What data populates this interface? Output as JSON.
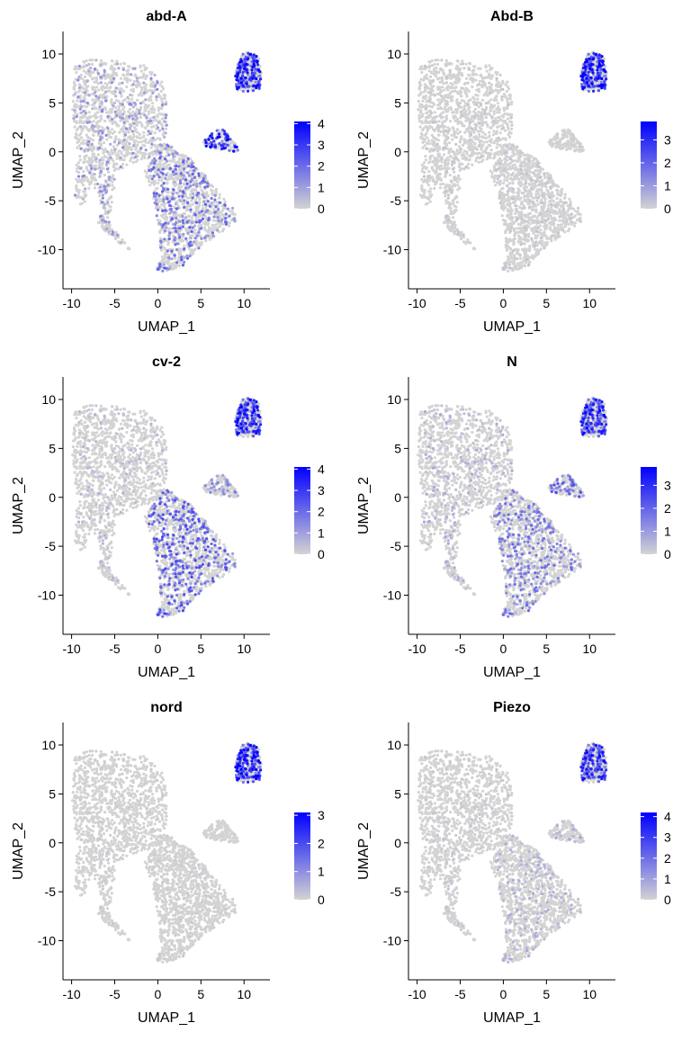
{
  "figure": {
    "colors": {
      "low": "#d3d3d3",
      "high": "#0000ff",
      "axis": "#000000"
    }
  },
  "chart_data": [
    {
      "type": "scatter",
      "title": "abd-A",
      "xlabel": "UMAP_1",
      "ylabel": "UMAP_2",
      "xlim": [
        -11,
        13
      ],
      "ylim": [
        -14,
        12.3
      ],
      "xticks": [
        -10,
        -5,
        0,
        5,
        10
      ],
      "yticks": [
        -10,
        -5,
        0,
        5,
        10
      ],
      "grid": false,
      "legend": {
        "placement": "right",
        "min": 0,
        "max": 4.1,
        "ticks": [
          0,
          1,
          2,
          3,
          4
        ]
      },
      "expression": {
        "top_right_cluster": 2.7,
        "mid_cluster": 2.6,
        "bottom_region": 1.4,
        "upper_region": 0.9
      }
    },
    {
      "type": "scatter",
      "title": "Abd-B",
      "xlabel": "UMAP_1",
      "ylabel": "UMAP_2",
      "xlim": [
        -11,
        13
      ],
      "ylim": [
        -14,
        12.3
      ],
      "xticks": [
        -10,
        -5,
        0,
        5,
        10
      ],
      "yticks": [
        -10,
        -5,
        0,
        5,
        10
      ],
      "grid": false,
      "legend": {
        "placement": "right",
        "min": 0,
        "max": 3.8,
        "ticks": [
          0,
          1,
          2,
          3
        ]
      },
      "expression": {
        "top_right_cluster": 2.6,
        "mid_cluster": 0.1,
        "bottom_region": 0.2,
        "upper_region": 0.2
      }
    },
    {
      "type": "scatter",
      "title": "cv-2",
      "xlabel": "UMAP_1",
      "ylabel": "UMAP_2",
      "xlim": [
        -11,
        13
      ],
      "ylim": [
        -14,
        12.3
      ],
      "xticks": [
        -10,
        -5,
        0,
        5,
        10
      ],
      "yticks": [
        -10,
        -5,
        0,
        5,
        10
      ],
      "grid": false,
      "legend": {
        "placement": "right",
        "min": 0,
        "max": 4.1,
        "ticks": [
          0,
          1,
          2,
          3,
          4
        ]
      },
      "expression": {
        "top_right_cluster": 2.6,
        "mid_cluster": 1.1,
        "bottom_region": 1.7,
        "upper_region": 0.4
      }
    },
    {
      "type": "scatter",
      "title": "N",
      "xlabel": "UMAP_1",
      "ylabel": "UMAP_2",
      "xlim": [
        -11,
        13
      ],
      "ylim": [
        -14,
        12.3
      ],
      "xticks": [
        -10,
        -5,
        0,
        5,
        10
      ],
      "yticks": [
        -10,
        -5,
        0,
        5,
        10
      ],
      "grid": false,
      "legend": {
        "placement": "right",
        "min": 0,
        "max": 3.8,
        "ticks": [
          0,
          1,
          2,
          3
        ]
      },
      "expression": {
        "top_right_cluster": 2.3,
        "mid_cluster": 1.5,
        "bottom_region": 1.2,
        "upper_region": 0.5
      }
    },
    {
      "type": "scatter",
      "title": "nord",
      "xlabel": "UMAP_1",
      "ylabel": "UMAP_2",
      "xlim": [
        -11,
        13
      ],
      "ylim": [
        -14,
        12.3
      ],
      "xticks": [
        -10,
        -5,
        0,
        5,
        10
      ],
      "yticks": [
        -10,
        -5,
        0,
        5,
        10
      ],
      "grid": false,
      "legend": {
        "placement": "right",
        "min": 0,
        "max": 3.1,
        "ticks": [
          0,
          1,
          2,
          3
        ]
      },
      "expression": {
        "top_right_cluster": 2.1,
        "mid_cluster": 0.0,
        "bottom_region": 0.1,
        "upper_region": 0.1
      }
    },
    {
      "type": "scatter",
      "title": "Piezo",
      "xlabel": "UMAP_1",
      "ylabel": "UMAP_2",
      "xlim": [
        -11,
        13
      ],
      "ylim": [
        -14,
        12.3
      ],
      "xticks": [
        -10,
        -5,
        0,
        5,
        10
      ],
      "yticks": [
        -10,
        -5,
        0,
        5,
        10
      ],
      "grid": false,
      "legend": {
        "placement": "right",
        "min": 0,
        "max": 4.2,
        "ticks": [
          0,
          1,
          2,
          3,
          4
        ]
      },
      "expression": {
        "top_right_cluster": 2.5,
        "mid_cluster": 0.6,
        "bottom_region": 0.5,
        "upper_region": 0.2
      }
    }
  ]
}
